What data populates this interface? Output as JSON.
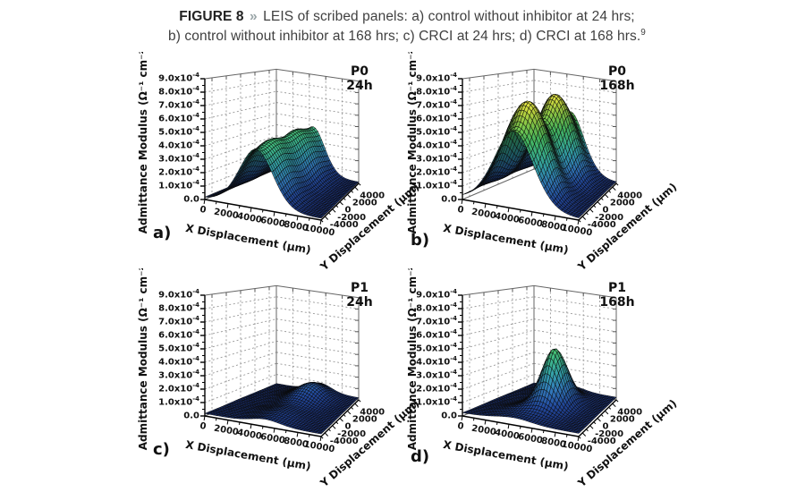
{
  "page": {
    "background": "#ffffff"
  },
  "caption": {
    "figure_label": "FIGURE 8",
    "separator": "»",
    "line1": "LEIS of scribed panels: a) control without inhibitor at 24 hrs;",
    "line2": "b) control without inhibitor at 168 hrs; c) CRCI at 24 hrs; d) CRCI at 168 hrs.",
    "footnote_ref": "9"
  },
  "axes": {
    "x_label": "X Displacement (μm)",
    "y_label": "Y Displacement (μm)",
    "z_label": "Admittance Modulus (Ω⁻¹ cm⁻²)",
    "x_ticks": [
      0,
      2000,
      4000,
      6000,
      8000,
      10000
    ],
    "y_ticks": [
      -4000,
      -2000,
      0,
      2000,
      4000
    ],
    "z_tick_labels": [
      "0.0",
      "1.0x10^-4",
      "2.0x10^-4",
      "3.0x10^-4",
      "4.0x10^-4",
      "5.0x10^-4",
      "6.0x10^-4",
      "7.0x10^-4",
      "8.0x10^-4",
      "9.0x10^-4"
    ],
    "x_range": [
      0,
      10000
    ],
    "y_range": [
      -5000,
      5000
    ],
    "z_range": [
      0,
      0.0009
    ],
    "x_minor_step": 1000,
    "y_minor_step": 1000,
    "z_minor_step": 0.5,
    "grid": "dashed walls",
    "wall_grid_color": "#999999",
    "axis_color": "#000000",
    "mesh_line_color": "#0a0a0a"
  },
  "chart_data": {
    "type": "surface",
    "title": "LEIS of scribed panels",
    "z_unit_scale": "1e-4 Ω⁻¹ cm⁻²",
    "legend_position": "none",
    "colormap": [
      {
        "z": 0,
        "color": "#182a69"
      },
      {
        "z": 1,
        "color": "#214696"
      },
      {
        "z": 2,
        "color": "#3278b9"
      },
      {
        "z": 3,
        "color": "#34a0af"
      },
      {
        "z": 4,
        "color": "#3cb68c"
      },
      {
        "z": 5,
        "color": "#46b95f"
      },
      {
        "z": 6,
        "color": "#7dc046"
      },
      {
        "z": 7,
        "color": "#bece3c"
      },
      {
        "z": 8,
        "color": "#f0e146"
      },
      {
        "z": 9,
        "color": "#f8ee6e"
      }
    ],
    "subplots": [
      {
        "letter": "a)",
        "panel": "P0",
        "time": "24h",
        "description": "control without inhibitor at 24 hrs",
        "peak_z_approx_units": 4.7,
        "peak_x_um": 4400,
        "model": {
          "base": 0.12,
          "components": [
            {
              "kind": "ridge",
              "x0": 4400,
              "sigma_x": 1500,
              "amp_dip": 4.1,
              "amp_peak": 4.7,
              "period": 5000
            }
          ]
        }
      },
      {
        "letter": "b)",
        "panel": "P0",
        "time": "168h",
        "description": "control without inhibitor at 168 hrs",
        "peak_z_approx_units": 7.8,
        "peak_x_um": 4400,
        "model": {
          "base": 0.12,
          "components": [
            {
              "kind": "ridge",
              "x0": 4400,
              "sigma_x": 1750,
              "amp_dip": 5.4,
              "amp_peak": 7.8,
              "period": 5000
            }
          ]
        }
      },
      {
        "letter": "c)",
        "panel": "P1",
        "time": "24h",
        "description": "CRCI at 24 hrs",
        "peak_z_approx_units": 1.5,
        "peak_x_um": 5400,
        "model": {
          "base": 0.18,
          "components": [
            {
              "kind": "ridge",
              "x0": 5300,
              "sigma_x": 1300,
              "amp_dip": 0.35,
              "amp_peak": 0.5,
              "period": 5000
            },
            {
              "kind": "blob",
              "amp": 0.85,
              "x0": 5500,
              "sigma_x": 1400,
              "y0": 2800,
              "sigma_y": 1700
            }
          ]
        }
      },
      {
        "letter": "d)",
        "panel": "P1",
        "time": "168h",
        "description": "CRCI at 168 hrs",
        "peak_z_approx_units": 4.7,
        "peak_x_um": 5500,
        "model": {
          "base": 0.22,
          "components": [
            {
              "kind": "ridge",
              "x0": 4300,
              "sigma_x": 1700,
              "amp_dip": 0.3,
              "amp_peak": 0.45,
              "period": 5000
            },
            {
              "kind": "blob",
              "amp": 4.3,
              "x0": 5500,
              "sigma_x": 1050,
              "y0": 500,
              "sigma_y": 1500
            }
          ]
        }
      }
    ]
  }
}
